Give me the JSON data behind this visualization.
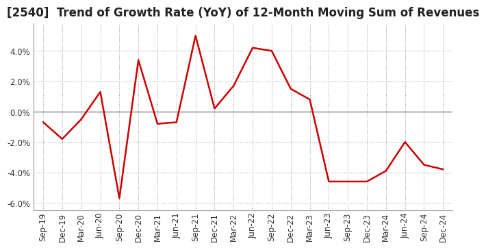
{
  "title": "[2540]  Trend of Growth Rate (YoY) of 12-Month Moving Sum of Revenues",
  "x_labels": [
    "Sep-19",
    "Dec-19",
    "Mar-20",
    "Jun-20",
    "Sep-20",
    "Dec-20",
    "Mar-21",
    "Jun-21",
    "Sep-21",
    "Dec-21",
    "Mar-22",
    "Jun-22",
    "Sep-22",
    "Dec-22",
    "Mar-23",
    "Jun-23",
    "Sep-23",
    "Dec-23",
    "Mar-24",
    "Jun-24",
    "Sep-24",
    "Dec-24"
  ],
  "y_values": [
    -0.007,
    -0.018,
    -0.005,
    0.013,
    -0.057,
    0.034,
    -0.008,
    -0.007,
    0.05,
    0.002,
    0.017,
    0.042,
    0.04,
    0.015,
    0.008,
    -0.046,
    -0.046,
    -0.046,
    -0.039,
    -0.02,
    -0.035,
    -0.038
  ],
  "line_color": "#cc0000",
  "line_width": 1.8,
  "background_color": "#ffffff",
  "plot_bg_color": "#ffffff",
  "grid_color": "#999999",
  "zero_line_color": "#777777",
  "ylim": [
    -0.065,
    0.058
  ],
  "yticks": [
    -0.06,
    -0.04,
    -0.02,
    0.0,
    0.02,
    0.04
  ],
  "title_fontsize": 12,
  "tick_fontsize": 8.5
}
